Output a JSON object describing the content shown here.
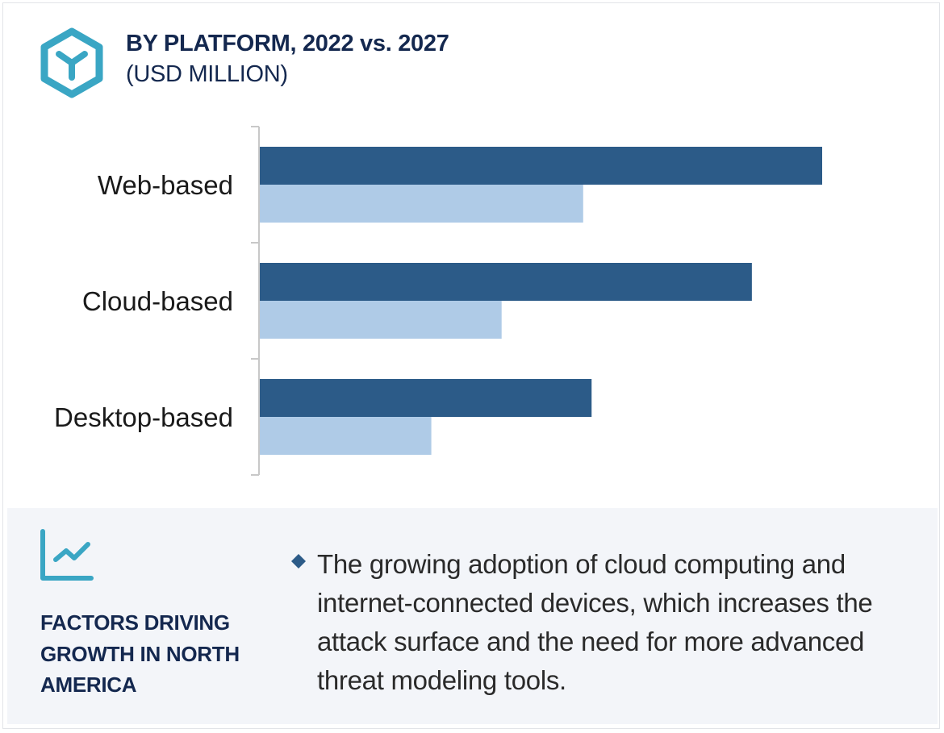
{
  "header": {
    "title": "BY PLATFORM, 2022 vs. 2027",
    "subtitle": "(USD MILLION)",
    "logo_icon": "hexagon-y-logo-icon"
  },
  "colors": {
    "accent": "#3aa6c4",
    "series_2027": "#2c5b88",
    "series_2022": "#afcbe7",
    "heading_text": "#14284f",
    "panel_bg": "#f3f5f9"
  },
  "chart_data": {
    "type": "bar",
    "orientation": "horizontal",
    "title": "BY PLATFORM, 2022 vs. 2027",
    "subtitle": "(USD MILLION)",
    "xlabel": "",
    "ylabel": "",
    "categories": [
      "Web-based",
      "Cloud-based",
      "Desktop-based"
    ],
    "series": [
      {
        "name": "2027",
        "color": "#2c5b88",
        "values": [
          100,
          87.5,
          59
        ]
      },
      {
        "name": "2022",
        "color": "#afcbe7",
        "values": [
          57.5,
          43,
          30.5
        ]
      }
    ],
    "xlim": [
      0,
      100
    ],
    "value_units": "relative (no value axis shown)",
    "grid": false,
    "legend": "none"
  },
  "factors": {
    "icon": "trend-line-chart-icon",
    "heading": "FACTORS DRIVING GROWTH IN NORTH AMERICA",
    "bullets": [
      "The growing adoption of cloud computing and internet-connected devices, which increases the attack surface and the need for more advanced threat modeling tools."
    ]
  }
}
